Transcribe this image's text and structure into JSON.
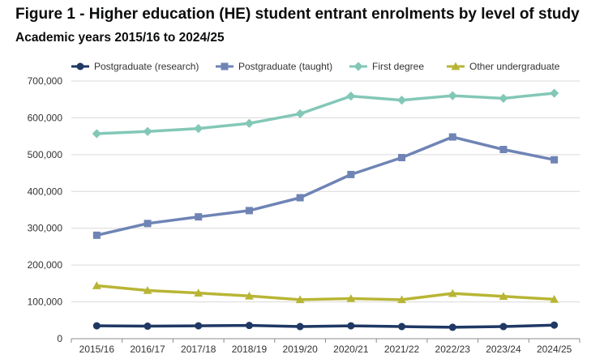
{
  "title": "Figure 1 - Higher education (HE) student entrant enrolments by level of study",
  "subtitle": "Academic years 2015/16 to 2024/25",
  "chart_data": {
    "type": "line",
    "title": "Figure 1 - Higher education (HE) student entrant enrolments by level of study",
    "subtitle": "Academic years 2015/16 to 2024/25",
    "xlabel": "",
    "ylabel": "",
    "categories": [
      "2015/16",
      "2016/17",
      "2017/18",
      "2018/19",
      "2019/20",
      "2020/21",
      "2021/22",
      "2022/23",
      "2023/24",
      "2024/25"
    ],
    "ylim": [
      0,
      700000
    ],
    "yticks": [
      0,
      100000,
      200000,
      300000,
      400000,
      500000,
      600000,
      700000
    ],
    "ytick_labels": [
      "0",
      "100,000",
      "200,000",
      "300,000",
      "400,000",
      "500,000",
      "600,000",
      "700,000"
    ],
    "grid": true,
    "legend_position": "top",
    "series": [
      {
        "name": "Postgraduate (research)",
        "color": "#1f3864",
        "marker": "circle",
        "values": [
          35000,
          34000,
          35000,
          36000,
          33000,
          35000,
          33000,
          31000,
          33000,
          37000
        ]
      },
      {
        "name": "Postgraduate (taught)",
        "color": "#6f84b5",
        "marker": "square",
        "values": [
          281000,
          313000,
          331000,
          348000,
          383000,
          446000,
          492000,
          548000,
          514000,
          486000
        ]
      },
      {
        "name": "First degree",
        "color": "#83c7b7",
        "marker": "diamond",
        "values": [
          557000,
          563000,
          571000,
          585000,
          611000,
          659000,
          648000,
          660000,
          653000,
          667000
        ]
      },
      {
        "name": "Other undergraduate",
        "color": "#b8b535",
        "marker": "triangle",
        "values": [
          144000,
          131000,
          124000,
          116000,
          106000,
          109000,
          106000,
          123000,
          115000,
          107000
        ]
      }
    ]
  }
}
